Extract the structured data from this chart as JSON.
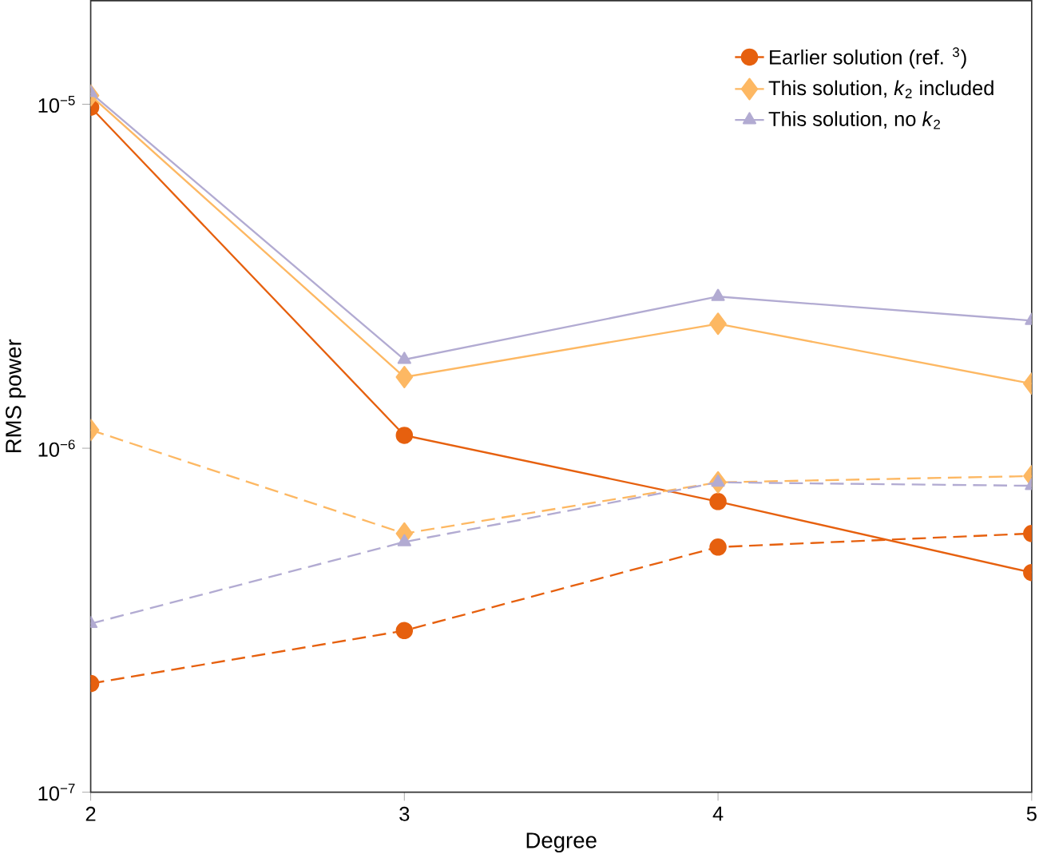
{
  "chart_data": {
    "type": "line",
    "xlabel": "Degree",
    "ylabel": "RMS power",
    "x": [
      2,
      3,
      4,
      5
    ],
    "log": "y",
    "xlim": [
      2,
      5
    ],
    "ylim": [
      1e-07,
      2e-05
    ],
    "xticks": [
      2,
      3,
      4,
      5
    ],
    "yticks": [
      {
        "value": 1e-07,
        "label": "10$^{−7}$"
      },
      {
        "value": 1e-06,
        "label": "10$^{−6}$"
      },
      {
        "value": 1e-05,
        "label": "10$^{−5}$"
      }
    ],
    "grid": false,
    "legend": "top right",
    "series": [
      {
        "name": "Earlier solution (ref. $^{3}$)",
        "color": "#e6600e",
        "marker": "circle",
        "line_style": "solid",
        "values": [
          9.8e-06,
          1.09e-06,
          7e-07,
          4.35e-07
        ]
      },
      {
        "name": "This solution, *k*$_{2}$ included",
        "color": "#fdb863",
        "marker": "diamond",
        "line_style": "solid",
        "values": [
          1.06e-05,
          1.61e-06,
          2.3e-06,
          1.54e-06
        ]
      },
      {
        "name": "This solution, no *k*$_{2}$",
        "color": "#b2abd2",
        "marker": "triangle",
        "line_style": "solid",
        "values": [
          1.08e-05,
          1.81e-06,
          2.76e-06,
          2.35e-06
        ]
      },
      {
        "color": "#e6600e",
        "marker": "circle",
        "line_style": "dashed",
        "values": [
          2.07e-07,
          2.95e-07,
          5.16e-07,
          5.65e-07
        ]
      },
      {
        "color": "#fdb863",
        "marker": "diamond",
        "line_style": "dashed",
        "values": [
          1.13e-06,
          5.65e-07,
          7.96e-07,
          8.3e-07
        ]
      },
      {
        "color": "#b2abd2",
        "marker": "triangle",
        "line_style": "dashed",
        "values": [
          3.09e-07,
          5.34e-07,
          7.96e-07,
          7.78e-07
        ]
      }
    ]
  }
}
